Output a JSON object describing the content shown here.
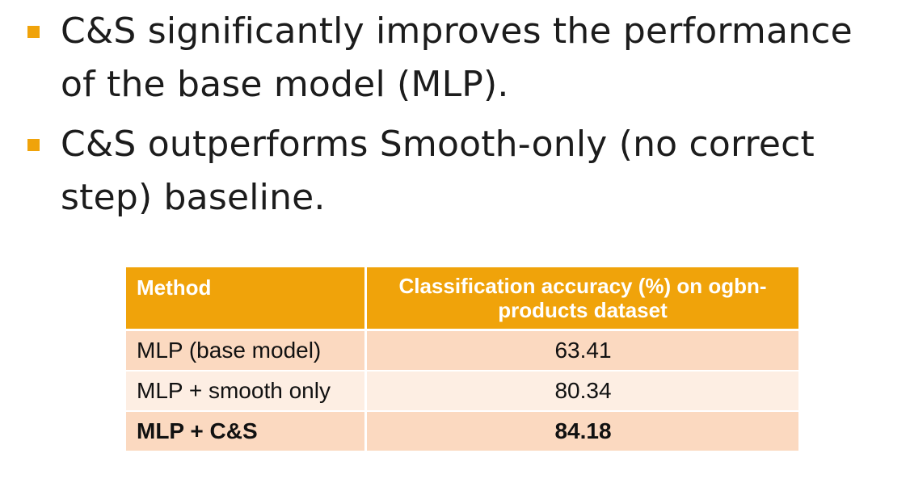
{
  "bullets": [
    {
      "text": "C&S significantly improves the performance of the base model (MLP)."
    },
    {
      "text": "C&S outperforms Smooth-only (no correct step) baseline."
    }
  ],
  "table": {
    "headers": [
      "Method",
      "Classification accuracy (%) on ogbn-products dataset"
    ],
    "rows": [
      {
        "method": "MLP (base model)",
        "accuracy": "63.41"
      },
      {
        "method": "MLP + smooth only",
        "accuracy": "80.34"
      },
      {
        "method": "MLP + C&S",
        "accuracy": "84.18"
      }
    ]
  },
  "colors": {
    "accent": "#f0a30a",
    "row_dark": "#fbd9c0",
    "row_light": "#fdeee3"
  }
}
